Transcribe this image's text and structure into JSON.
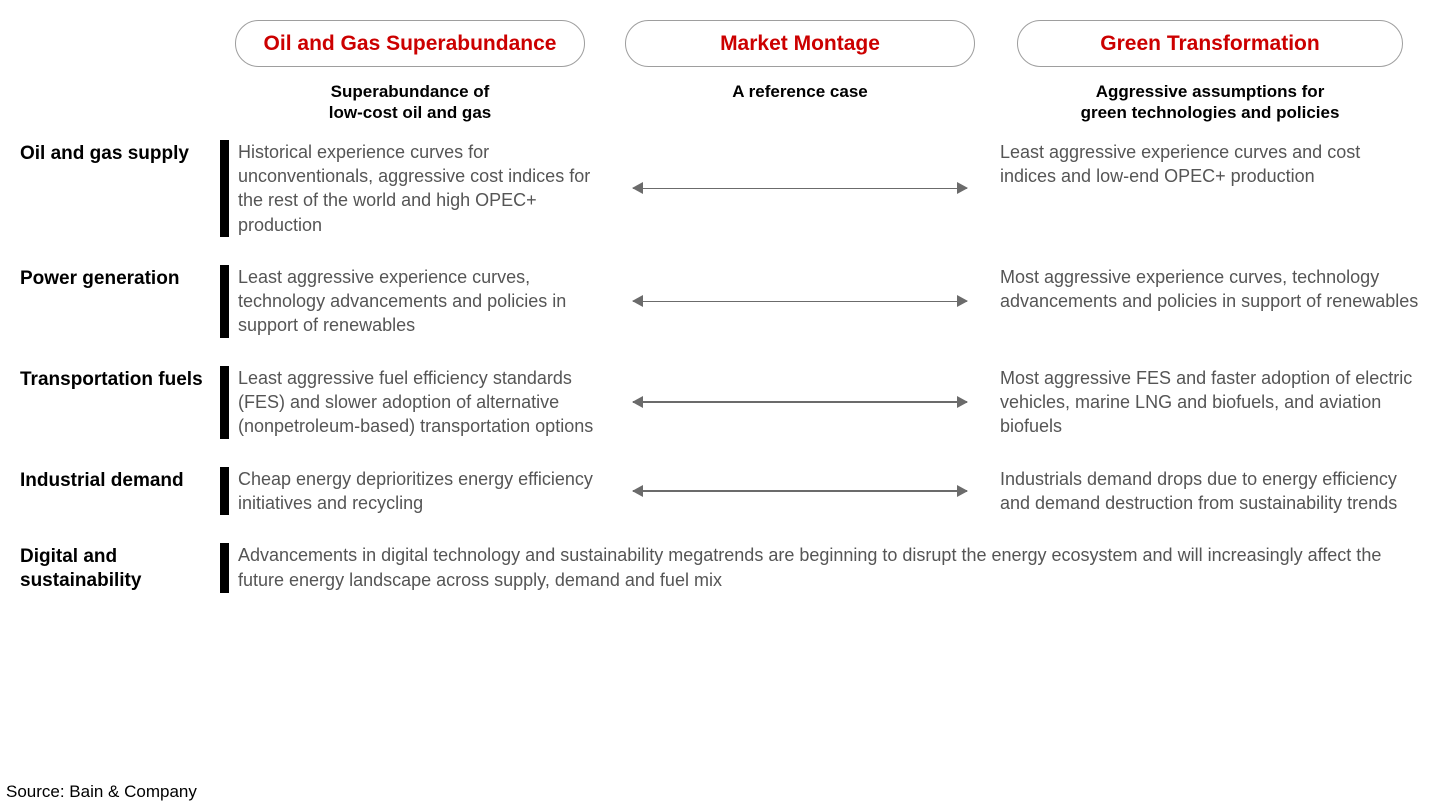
{
  "colors": {
    "accent_red": "#cc0000",
    "pill_border": "#9e9e9e",
    "body_text": "#555555",
    "arrow": "#6b6b6b",
    "bar": "#000000",
    "background": "#ffffff"
  },
  "scenarios": {
    "left": {
      "title": "Oil and Gas Superabundance",
      "subtitle": "Superabundance of\nlow-cost oil and gas"
    },
    "middle": {
      "title": "Market Montage",
      "subtitle": "A reference case"
    },
    "right": {
      "title": "Green Transformation",
      "subtitle": "Aggressive assumptions for\ngreen technologies and policies"
    }
  },
  "rows": [
    {
      "label": "Oil and gas supply",
      "left": "Historical experience curves for unconventionals, aggressive cost indices for the rest of the world and high OPEC+ production",
      "right": "Least aggressive experience curves and cost indices and low-end OPEC+ production",
      "arrow": true
    },
    {
      "label": "Power generation",
      "left": "Least aggressive experience curves, technology advancements and policies in support of renewables",
      "right": "Most aggressive experience curves, technology advancements and policies in support of renewables",
      "arrow": true
    },
    {
      "label": "Transportation fuels",
      "left": "Least aggressive fuel efficiency standards (FES) and slower adoption of alternative (nonpetroleum-based) transportation options",
      "right": "Most aggressive FES and faster adoption of electric vehicles, marine LNG and biofuels, and aviation biofuels",
      "arrow": true
    },
    {
      "label": "Industrial demand",
      "left": "Cheap energy deprioritizes energy efficiency initiatives and recycling",
      "right": "Industrials demand drops due to energy efficiency and demand destruction from sustainability trends",
      "arrow": true
    },
    {
      "label": "Digital and sustainability",
      "full": "Advancements in digital technology and sustainability megatrends are beginning to disrupt the energy ecosystem and will increasingly affect the future energy landscape across supply, demand and fuel mix"
    }
  ],
  "source": "Source: Bain & Company"
}
